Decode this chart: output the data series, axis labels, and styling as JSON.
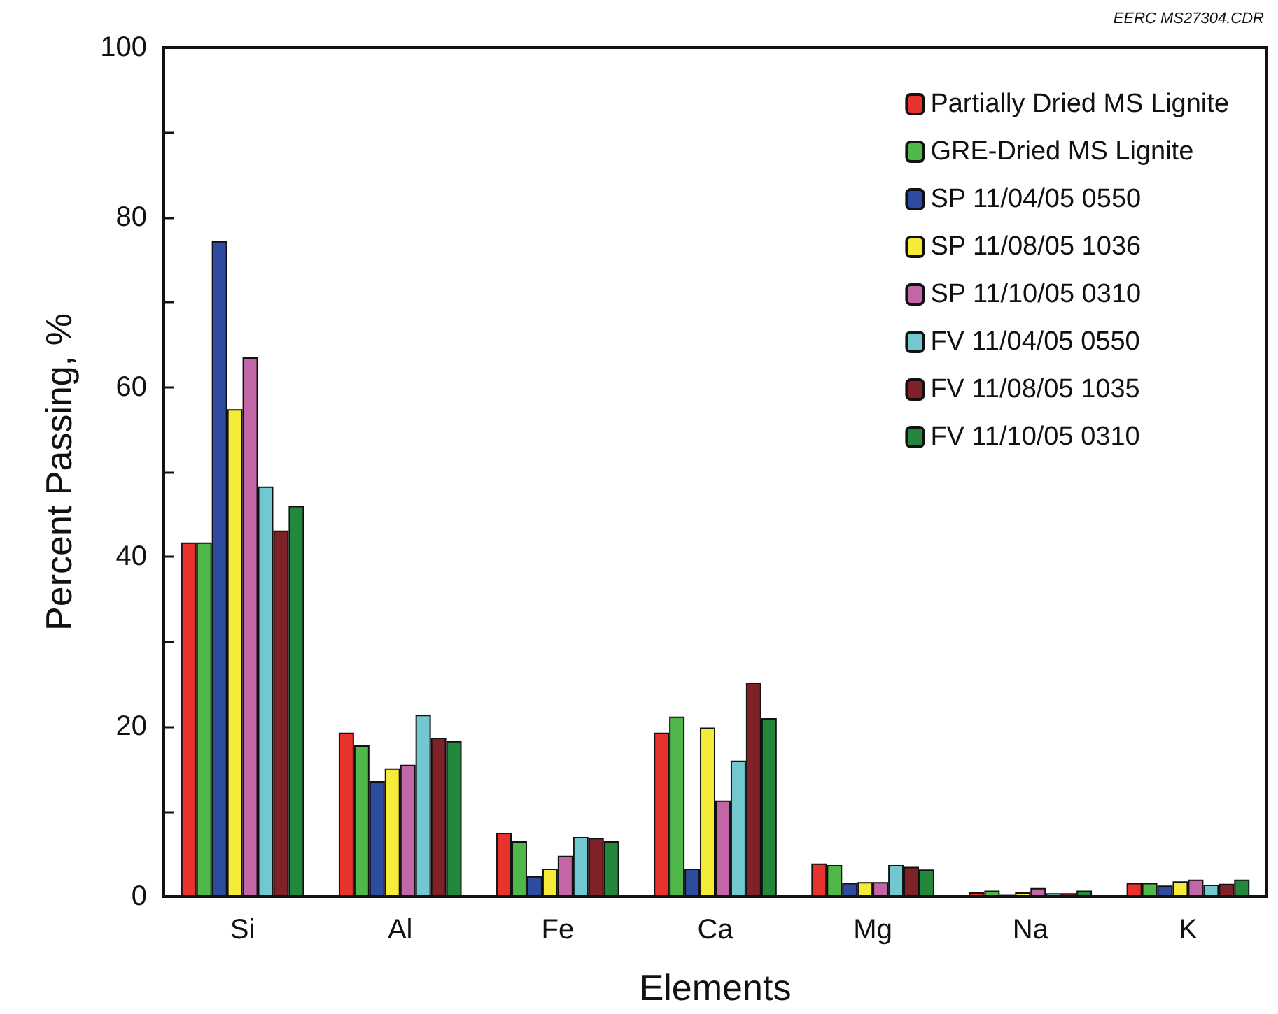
{
  "chart_data": {
    "type": "bar",
    "xlabel": "Elements",
    "ylabel": "Percent Passing, %",
    "annotations": [
      "EERC MS27304.CDR"
    ],
    "categories": [
      "Si",
      "Al",
      "Fe",
      "Ca",
      "Mg",
      "Na",
      "K"
    ],
    "series": [
      {
        "name": "Partially Dried MS Lignite",
        "color": "#e8322e",
        "values": [
          41.7,
          19.3,
          7.5,
          19.3,
          3.9,
          0.5,
          1.6
        ]
      },
      {
        "name": "GRE-Dried MS Lignite",
        "color": "#4fb848",
        "values": [
          41.7,
          17.8,
          6.5,
          21.2,
          3.7,
          0.7,
          1.6
        ]
      },
      {
        "name": "SP 11/04/05 0550",
        "color": "#2e4c9e",
        "values": [
          77.2,
          13.6,
          2.4,
          3.3,
          1.6,
          0.2,
          1.3
        ]
      },
      {
        "name": "SP 11/08/05 1036",
        "color": "#f5ec3a",
        "values": [
          57.4,
          15.1,
          3.3,
          19.9,
          1.7,
          0.5,
          1.8
        ]
      },
      {
        "name": "SP 11/10/05 0310",
        "color": "#c266a8",
        "values": [
          63.5,
          15.5,
          4.8,
          11.3,
          1.7,
          1.0,
          2.0
        ]
      },
      {
        "name": "FV 11/04/05 0550",
        "color": "#72c8cf",
        "values": [
          48.3,
          21.4,
          7.0,
          16.0,
          3.7,
          0.4,
          1.4
        ]
      },
      {
        "name": "FV 11/08/05 1035",
        "color": "#7e2228",
        "values": [
          43.1,
          18.7,
          6.9,
          25.2,
          3.5,
          0.4,
          1.5
        ]
      },
      {
        "name": "FV 11/10/05 0310",
        "color": "#23883c",
        "values": [
          46.0,
          18.3,
          6.5,
          21.0,
          3.2,
          0.7,
          2.0
        ]
      }
    ],
    "ylim": [
      0,
      100
    ],
    "yticks": [
      0,
      {
        "value": 10,
        "label": null
      },
      20,
      {
        "value": 30,
        "label": null
      },
      40,
      {
        "value": 50,
        "label": null
      },
      60,
      {
        "value": 70,
        "label": null
      },
      80,
      {
        "value": 90,
        "label": null
      },
      100
    ],
    "grid": false,
    "legend": "top right"
  }
}
